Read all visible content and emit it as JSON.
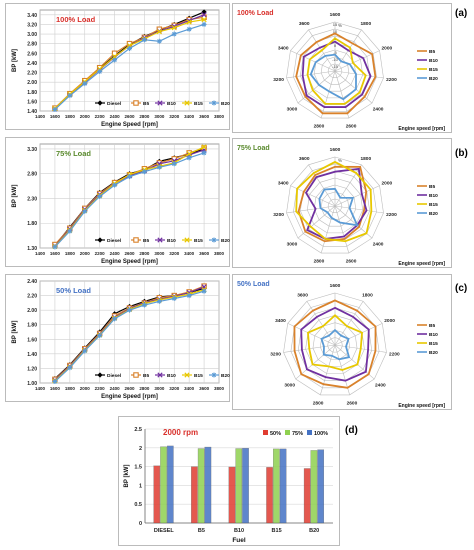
{
  "panel_tags": [
    "(a)",
    "(b)",
    "(c)",
    "(d)"
  ],
  "chart_data": [
    {
      "type": "line",
      "title": "100% Load",
      "xlabel": "Engine Speed [rpm]",
      "ylabel": "BP [kW]",
      "xlim": [
        1400,
        3800
      ],
      "ylim": [
        1.4,
        3.5
      ],
      "xticks": [
        "1400",
        "1600",
        "1800",
        "2000",
        "2200",
        "2400",
        "2600",
        "2800",
        "3000",
        "3200",
        "3400",
        "3600",
        "3800"
      ],
      "yticks": [
        "1.40",
        "1.60",
        "1.80",
        "2.00",
        "2.20",
        "2.40",
        "2.60",
        "2.80",
        "3.00",
        "3.20",
        "3.40"
      ],
      "grid": true,
      "legend": "bottom",
      "x": [
        1600,
        1800,
        2000,
        2200,
        2400,
        2600,
        2800,
        3000,
        3200,
        3400,
        3600
      ],
      "series": [
        {
          "name": "Diesel",
          "color": "#000000",
          "marker": "diamond",
          "values": [
            1.45,
            1.75,
            2.02,
            2.28,
            2.55,
            2.78,
            2.95,
            3.08,
            3.2,
            3.33,
            3.46
          ]
        },
        {
          "name": "B5",
          "color": "#d9822b",
          "marker": "square",
          "values": [
            1.46,
            1.76,
            2.03,
            2.3,
            2.6,
            2.8,
            2.93,
            3.1,
            3.18,
            3.3,
            3.35
          ]
        },
        {
          "name": "B10",
          "color": "#7030a0",
          "marker": "x",
          "values": [
            1.44,
            1.74,
            2.0,
            2.26,
            2.52,
            2.76,
            2.92,
            3.06,
            3.16,
            3.28,
            3.4
          ]
        },
        {
          "name": "B15",
          "color": "#e8c800",
          "marker": "x",
          "values": [
            1.45,
            1.75,
            2.01,
            2.27,
            2.53,
            2.76,
            2.9,
            3.05,
            3.13,
            3.25,
            3.3
          ]
        },
        {
          "name": "B20",
          "color": "#5b9bd5",
          "marker": "star",
          "values": [
            1.43,
            1.72,
            1.97,
            2.22,
            2.46,
            2.7,
            2.88,
            2.85,
            3.0,
            3.1,
            3.2
          ]
        }
      ]
    },
    {
      "type": "line",
      "title": "75% Load",
      "xlabel": "Engine Speed [rpm]",
      "ylabel": "BP [kW]",
      "xlim": [
        1400,
        3800
      ],
      "ylim": [
        1.3,
        3.4
      ],
      "xticks": [
        "1400",
        "1600",
        "1800",
        "2000",
        "2200",
        "2400",
        "2600",
        "2800",
        "3000",
        "3200",
        "3400",
        "3600",
        "3800"
      ],
      "yticks": [
        "1.30",
        "1.80",
        "2.30",
        "2.80",
        "3.30"
      ],
      "grid": true,
      "legend": "bottom",
      "x": [
        1600,
        1800,
        2000,
        2200,
        2400,
        2600,
        2800,
        3000,
        3200,
        3400,
        3600
      ],
      "series": [
        {
          "name": "Diesel",
          "color": "#000000",
          "marker": "diamond",
          "values": [
            1.35,
            1.72,
            2.1,
            2.42,
            2.63,
            2.8,
            2.88,
            3.05,
            3.12,
            3.2,
            3.3
          ]
        },
        {
          "name": "B5",
          "color": "#d9822b",
          "marker": "square",
          "values": [
            1.37,
            1.7,
            2.1,
            2.4,
            2.62,
            2.78,
            2.9,
            3.02,
            3.1,
            3.22,
            3.32
          ]
        },
        {
          "name": "B10",
          "color": "#7030a0",
          "marker": "x",
          "values": [
            1.34,
            1.68,
            2.08,
            2.38,
            2.6,
            2.76,
            2.86,
            3.0,
            3.06,
            3.18,
            3.28
          ]
        },
        {
          "name": "B15",
          "color": "#e8c800",
          "marker": "x",
          "values": [
            1.33,
            1.66,
            2.06,
            2.36,
            2.6,
            2.78,
            2.88,
            2.95,
            3.02,
            3.2,
            3.34
          ]
        },
        {
          "name": "B20",
          "color": "#5b9bd5",
          "marker": "star",
          "values": [
            1.32,
            1.64,
            2.04,
            2.34,
            2.57,
            2.74,
            2.84,
            2.93,
            3.0,
            3.12,
            3.22
          ]
        }
      ]
    },
    {
      "type": "line",
      "title": "50% Load",
      "xlabel": "Engine Speed [rpm]",
      "ylabel": "BP [kW]",
      "xlim": [
        1400,
        3800
      ],
      "ylim": [
        1.0,
        2.4
      ],
      "xticks": [
        "1400",
        "1600",
        "1800",
        "2000",
        "2200",
        "2400",
        "2600",
        "2800",
        "3000",
        "3200",
        "3400",
        "3600",
        "3800"
      ],
      "yticks": [
        "1.00",
        "1.20",
        "1.40",
        "1.60",
        "1.80",
        "2.00",
        "2.20",
        "2.40"
      ],
      "grid": true,
      "legend": "bottom",
      "x": [
        1600,
        1800,
        2000,
        2200,
        2400,
        2600,
        2800,
        3000,
        3200,
        3400,
        3600
      ],
      "series": [
        {
          "name": "Diesel",
          "color": "#000000",
          "marker": "diamond",
          "values": [
            1.06,
            1.25,
            1.48,
            1.7,
            1.95,
            2.05,
            2.12,
            2.18,
            2.2,
            2.24,
            2.3
          ]
        },
        {
          "name": "B5",
          "color": "#d9822b",
          "marker": "square",
          "values": [
            1.05,
            1.24,
            1.47,
            1.68,
            1.92,
            2.03,
            2.1,
            2.17,
            2.2,
            2.25,
            2.33
          ]
        },
        {
          "name": "B10",
          "color": "#7030a0",
          "marker": "x",
          "values": [
            1.04,
            1.23,
            1.46,
            1.67,
            1.9,
            2.02,
            2.1,
            2.15,
            2.19,
            2.24,
            2.32
          ]
        },
        {
          "name": "B15",
          "color": "#e8c800",
          "marker": "x",
          "values": [
            1.03,
            1.22,
            1.45,
            1.66,
            1.89,
            2.01,
            2.09,
            2.14,
            2.18,
            2.22,
            2.28
          ]
        },
        {
          "name": "B20",
          "color": "#5b9bd5",
          "marker": "star",
          "values": [
            1.02,
            1.21,
            1.44,
            1.65,
            1.88,
            2.0,
            2.07,
            2.12,
            2.16,
            2.2,
            2.26
          ]
        }
      ]
    },
    {
      "type": "radar",
      "title": "100% Load",
      "scale_label": "%",
      "angle_label": "Engine speed [rpm]",
      "axes": [
        "1600",
        "1800",
        "2000",
        "2200",
        "2400",
        "2600",
        "2800",
        "3000",
        "3200",
        "3400",
        "3600"
      ],
      "rlim": [
        -15,
        15
      ],
      "ring_labels": [
        "-15",
        "-10",
        "-5",
        "0",
        "5",
        "10",
        "15"
      ],
      "legend": "right",
      "series": [
        {
          "name": "B5",
          "color": "#d9822b",
          "values": [
            8,
            5,
            10,
            10,
            9,
            12,
            12,
            9,
            9,
            8,
            6
          ]
        },
        {
          "name": "B10",
          "color": "#7030a0",
          "values": [
            3,
            0,
            4,
            7,
            7,
            8,
            8,
            8,
            5,
            6,
            2
          ]
        },
        {
          "name": "B15",
          "color": "#e8c800",
          "values": [
            5,
            2,
            -3,
            4,
            5,
            6,
            6,
            3,
            2,
            2,
            0
          ]
        },
        {
          "name": "B20",
          "color": "#5b9bd5",
          "values": [
            -5,
            -8,
            -5,
            -2,
            2,
            3,
            -2,
            -2,
            0,
            -2,
            -4
          ]
        }
      ]
    },
    {
      "type": "radar",
      "title": "75% Load",
      "scale_label": "%",
      "angle_label": "Engine speed [rpm]",
      "axes": [
        "1600",
        "1800",
        "2000",
        "2200",
        "2400",
        "2600",
        "2800",
        "3000",
        "3200",
        "3400",
        "3600"
      ],
      "rlim": [
        -10,
        10
      ],
      "legend": "right",
      "series": [
        {
          "name": "B5",
          "color": "#d9822b",
          "values": [
            6,
            9,
            4,
            2,
            3,
            4,
            5,
            6,
            5,
            4,
            5
          ]
        },
        {
          "name": "B10",
          "color": "#7030a0",
          "values": [
            4,
            8,
            2,
            3,
            2,
            3,
            4,
            5,
            -2,
            3,
            4
          ]
        },
        {
          "name": "B15",
          "color": "#e8c800",
          "values": [
            8,
            6,
            6,
            5,
            7,
            5,
            4,
            3,
            6,
            7,
            6
          ]
        },
        {
          "name": "B20",
          "color": "#5b9bd5",
          "values": [
            -3,
            -6,
            -2,
            -4,
            2,
            -3,
            -5,
            -6,
            -4,
            -3,
            -2
          ]
        }
      ]
    },
    {
      "type": "radar",
      "title": "50% Load",
      "angle_label": "Engine speed [rpm]",
      "axes": [
        "1600",
        "1800",
        "2000",
        "2200",
        "2400",
        "2600",
        "2800",
        "3000",
        "3200",
        "3400",
        "3600"
      ],
      "rlim": [
        -7,
        7
      ],
      "legend": "right",
      "series": [
        {
          "name": "B5",
          "color": "#d9822b",
          "values": [
            5,
            4,
            5,
            4,
            5,
            5,
            4,
            5,
            4,
            5,
            4
          ]
        },
        {
          "name": "B10",
          "color": "#7030a0",
          "values": [
            3,
            2,
            3,
            2,
            4,
            3,
            2,
            3,
            2,
            3,
            2
          ]
        },
        {
          "name": "B15",
          "color": "#e8c800",
          "values": [
            1,
            -1,
            1,
            0,
            1,
            0,
            -1,
            1,
            0,
            1,
            -1
          ]
        },
        {
          "name": "B20",
          "color": "#5b9bd5",
          "values": [
            -3,
            -4,
            -3,
            -4,
            -2,
            -3,
            -4,
            -3,
            -4,
            -3,
            -4
          ]
        }
      ]
    },
    {
      "type": "bar",
      "title": "2000 rpm",
      "xlabel": "Fuel",
      "ylabel": "BP [kW]",
      "ylim": [
        0,
        2.5
      ],
      "yticks": [
        "0",
        "0.5",
        "1",
        "1.5",
        "2",
        "2.5"
      ],
      "categories": [
        "DIESEL",
        "B5",
        "B10",
        "B15",
        "B20"
      ],
      "legend": "top-right",
      "series": [
        {
          "name": "50%",
          "color": "#e03c31",
          "values": [
            1.52,
            1.5,
            1.49,
            1.48,
            1.45
          ]
        },
        {
          "name": "75%",
          "color": "#8fd14f",
          "values": [
            2.03,
            1.98,
            1.98,
            1.97,
            1.93
          ]
        },
        {
          "name": "100%",
          "color": "#4472c4",
          "values": [
            2.05,
            2.02,
            1.99,
            1.97,
            1.95
          ]
        }
      ]
    }
  ]
}
